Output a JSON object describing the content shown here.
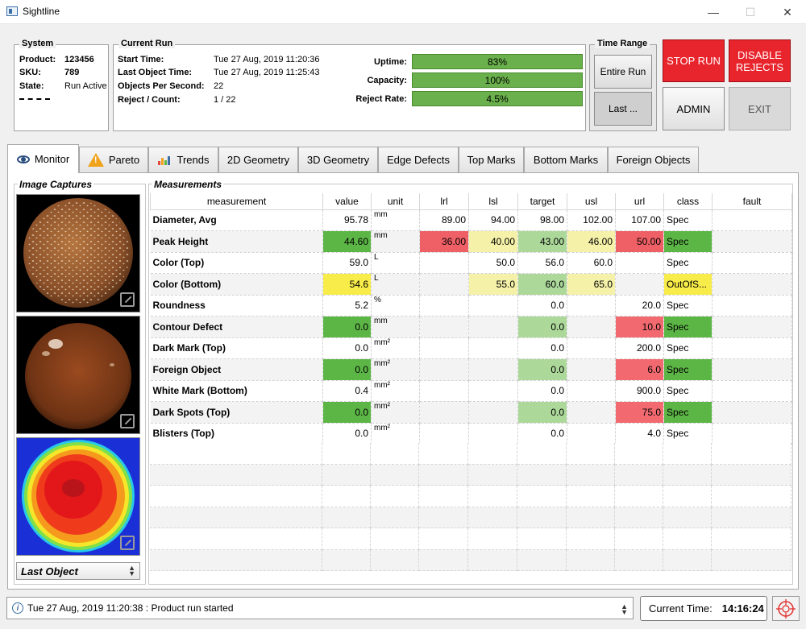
{
  "window": {
    "title": "Sightline",
    "minimize": "—",
    "maximize": "☐",
    "close": "✕"
  },
  "system": {
    "title": "System",
    "product_label": "Product:",
    "product": "123456",
    "sku_label": "SKU:",
    "sku": "789",
    "state_label": "State:",
    "state": "Run Active"
  },
  "current_run": {
    "title": "Current Run",
    "start_label": "Start Time:",
    "start": "Tue 27 Aug, 2019 11:20:36",
    "last_label": "Last Object Time:",
    "last": "Tue 27 Aug, 2019 11:25:43",
    "ops_label": "Objects Per Second:",
    "ops": "22",
    "reject_label": "Reject / Count:",
    "reject": "1 / 22",
    "uptime_label": "Uptime:",
    "uptime": "83%",
    "capacity_label": "Capacity:",
    "capacity": "100%",
    "reject_rate_label": "Reject Rate:",
    "reject_rate": "4.5%"
  },
  "time_range": {
    "title": "Time Range",
    "entire": "Entire Run",
    "last": "Last ..."
  },
  "controls": {
    "stop": "STOP RUN",
    "disable": "DISABLE REJECTS",
    "admin": "ADMIN",
    "exit": "EXIT"
  },
  "tabs": [
    "Monitor",
    "Pareto",
    "Trends",
    "2D Geometry",
    "3D Geometry",
    "Edge Defects",
    "Top Marks",
    "Bottom Marks",
    "Foreign Objects"
  ],
  "captures": {
    "title": "Image Captures",
    "selector": "Last Object"
  },
  "measurements": {
    "title": "Measurements",
    "columns": [
      "measurement",
      "value",
      "unit",
      "lrl",
      "lsl",
      "target",
      "usl",
      "url",
      "class",
      "fault"
    ],
    "rows": [
      {
        "name": "Diameter, Avg",
        "value": "95.78",
        "unit": "mm",
        "lrl": "89.00",
        "lsl": "94.00",
        "target": "98.00",
        "usl": "102.00",
        "url": "107.00",
        "class": "Spec",
        "fault": ""
      },
      {
        "name": "Peak Height",
        "value": "44.60",
        "unit": "mm",
        "lrl": "36.00",
        "lsl": "40.00",
        "target": "43.00",
        "usl": "46.00",
        "url": "50.00",
        "class": "Spec",
        "fault": ""
      },
      {
        "name": "Color (Top)",
        "value": "59.0",
        "unit": "L",
        "lrl": "",
        "lsl": "50.0",
        "target": "56.0",
        "usl": "60.0",
        "url": "",
        "class": "Spec",
        "fault": ""
      },
      {
        "name": "Color (Bottom)",
        "value": "54.6",
        "unit": "L",
        "lrl": "",
        "lsl": "55.0",
        "target": "60.0",
        "usl": "65.0",
        "url": "",
        "class": "OutOfS...",
        "fault": ""
      },
      {
        "name": "Roundness",
        "value": "5.2",
        "unit": "%",
        "lrl": "",
        "lsl": "",
        "target": "0.0",
        "usl": "",
        "url": "20.0",
        "class": "Spec",
        "fault": ""
      },
      {
        "name": "Contour Defect",
        "value": "0.0",
        "unit": "mm",
        "lrl": "",
        "lsl": "",
        "target": "0.0",
        "usl": "",
        "url": "10.0",
        "class": "Spec",
        "fault": ""
      },
      {
        "name": "Dark Mark (Top)",
        "value": "0.0",
        "unit": "mm²",
        "lrl": "",
        "lsl": "",
        "target": "0.0",
        "usl": "",
        "url": "200.0",
        "class": "Spec",
        "fault": ""
      },
      {
        "name": "Foreign Object",
        "value": "0.0",
        "unit": "mm²",
        "lrl": "",
        "lsl": "",
        "target": "0.0",
        "usl": "",
        "url": "6.0",
        "class": "Spec",
        "fault": ""
      },
      {
        "name": "White Mark (Bottom)",
        "value": "0.4",
        "unit": "mm²",
        "lrl": "",
        "lsl": "",
        "target": "0.0",
        "usl": "",
        "url": "900.0",
        "class": "Spec",
        "fault": ""
      },
      {
        "name": "Dark Spots (Top)",
        "value": "0.0",
        "unit": "mm²",
        "lrl": "",
        "lsl": "",
        "target": "0.0",
        "usl": "",
        "url": "75.0",
        "class": "Spec",
        "fault": ""
      },
      {
        "name": "Blisters (Top)",
        "value": "0.0",
        "unit": "mm²",
        "lrl": "",
        "lsl": "",
        "target": "0.0",
        "usl": "",
        "url": "4.0",
        "class": "Spec",
        "fault": ""
      }
    ]
  },
  "status": {
    "message": "Tue 27 Aug, 2019 11:20:38 : Product run started",
    "clock_label": "Current Time:",
    "clock": "14:16:24"
  }
}
